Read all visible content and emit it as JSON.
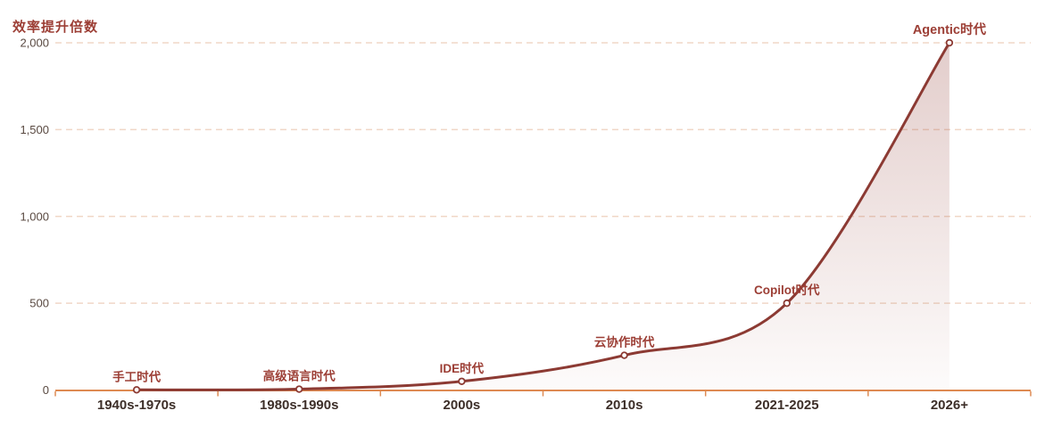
{
  "chart_data": {
    "type": "line",
    "title": "效率提升倍数",
    "xlabel": "",
    "ylabel": "效率提升倍数",
    "categories": [
      "1940s-1970s",
      "1980s-1990s",
      "2000s",
      "2010s",
      "2021-2025",
      "2026+"
    ],
    "values": [
      1,
      5,
      50,
      200,
      500,
      2000
    ],
    "point_labels": [
      "手工时代",
      "高级语言时代",
      "IDE时代",
      "云协作时代",
      "Copilot时代",
      "Agentic时代"
    ],
    "y_ticks": [
      0,
      500,
      1000,
      1500,
      2000
    ],
    "y_tick_labels": [
      "0",
      "500",
      "1,000",
      "1,500",
      "2,000"
    ],
    "ylim": [
      0,
      2000
    ],
    "grid": "horizontal-dashed",
    "legend_position": "none",
    "smooth": true,
    "area_fill": true,
    "colors": {
      "line": "#8C3A33",
      "point_label": "#9C3E35",
      "title": "#9C3E35",
      "axis": "#DE8A52",
      "gridline": "#F0D7C7",
      "x_tick_label": "#3D2F29",
      "y_tick_label": "#594941",
      "marker_fill": "#FFFFFF",
      "area_top": "rgba(146,62,54,0.26)",
      "area_bottom": "rgba(146,62,54,0.02)"
    }
  }
}
